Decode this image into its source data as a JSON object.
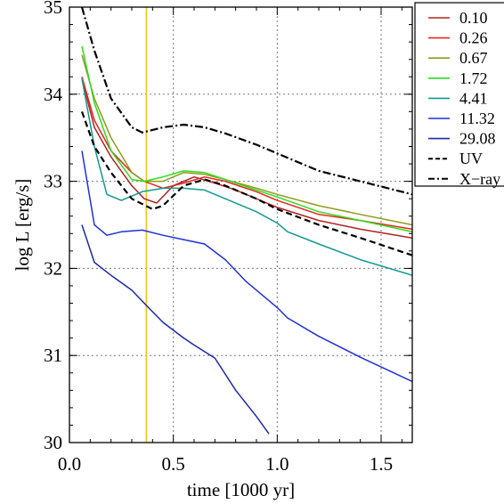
{
  "chart_data": {
    "type": "line",
    "xlabel": "time [1000 yr]",
    "ylabel": "log L [erg/s]",
    "xlim": [
      0.0,
      1.65
    ],
    "ylim": [
      30,
      35
    ],
    "x_ticks": [
      {
        "value": 0.0,
        "label": "0.0"
      },
      {
        "value": 0.5,
        "label": "0.5"
      },
      {
        "value": 1.0,
        "label": "1.0"
      },
      {
        "value": 1.5,
        "label": "1.5"
      }
    ],
    "y_ticks": [
      {
        "value": 30,
        "label": "30"
      },
      {
        "value": 31,
        "label": "31"
      },
      {
        "value": 32,
        "label": "32"
      },
      {
        "value": 33,
        "label": "33"
      },
      {
        "value": 34,
        "label": "34"
      },
      {
        "value": 35,
        "label": "35"
      }
    ],
    "grid": true,
    "legend_position": "top-right outside",
    "vertical_line": {
      "x": 0.37,
      "color": "#f0c419"
    },
    "series": [
      {
        "name": "0.10",
        "color": "#b22222",
        "dash": "solid",
        "x": [
          0.06,
          0.12,
          0.2,
          0.3,
          0.36,
          0.42,
          0.5,
          0.6,
          0.7,
          0.8,
          1.0,
          1.2,
          1.4,
          1.65
        ],
        "y": [
          34.18,
          33.62,
          33.28,
          32.95,
          32.8,
          32.75,
          32.95,
          33.05,
          32.98,
          32.9,
          32.7,
          32.55,
          32.45,
          32.35
        ]
      },
      {
        "name": "0.26",
        "color": "#e8251b",
        "dash": "solid",
        "x": [
          0.06,
          0.12,
          0.2,
          0.3,
          0.36,
          0.45,
          0.55,
          0.65,
          0.75,
          0.9,
          1.0,
          1.2,
          1.4,
          1.65
        ],
        "y": [
          34.2,
          33.7,
          33.35,
          33.1,
          33.0,
          32.92,
          32.98,
          33.05,
          33.0,
          32.88,
          32.78,
          32.62,
          32.55,
          32.45
        ]
      },
      {
        "name": "0.67",
        "color": "#8e9b1a",
        "dash": "solid",
        "x": [
          0.06,
          0.12,
          0.2,
          0.3,
          0.36,
          0.45,
          0.55,
          0.65,
          0.75,
          0.9,
          1.0,
          1.2,
          1.4,
          1.65
        ],
        "y": [
          34.45,
          33.95,
          33.5,
          33.1,
          33.0,
          33.0,
          33.1,
          33.08,
          33.02,
          32.92,
          32.85,
          32.72,
          32.62,
          32.5
        ]
      },
      {
        "name": "1.72",
        "color": "#2ddc1a",
        "dash": "solid",
        "x": [
          0.06,
          0.12,
          0.2,
          0.3,
          0.36,
          0.45,
          0.55,
          0.65,
          0.75,
          0.9,
          1.0,
          1.2,
          1.4,
          1.65
        ],
        "y": [
          34.55,
          33.9,
          33.35,
          33.02,
          33.0,
          33.05,
          33.12,
          33.1,
          33.02,
          32.9,
          32.82,
          32.65,
          32.55,
          32.42
        ]
      },
      {
        "name": "4.41",
        "color": "#109a92",
        "dash": "solid",
        "x": [
          0.06,
          0.12,
          0.18,
          0.25,
          0.35,
          0.45,
          0.55,
          0.65,
          0.75,
          0.9,
          1.0,
          1.05,
          1.2,
          1.4,
          1.65
        ],
        "y": [
          34.18,
          33.4,
          32.85,
          32.78,
          32.88,
          32.92,
          32.92,
          32.9,
          32.8,
          32.65,
          32.52,
          32.42,
          32.28,
          32.1,
          31.92
        ]
      },
      {
        "name": "11.32",
        "color": "#2030d8",
        "dash": "solid",
        "x": [
          0.06,
          0.12,
          0.18,
          0.25,
          0.35,
          0.45,
          0.55,
          0.65,
          0.75,
          0.85,
          1.0,
          1.05,
          1.2,
          1.4,
          1.65
        ],
        "y": [
          33.35,
          32.5,
          32.38,
          32.42,
          32.44,
          32.38,
          32.33,
          32.28,
          32.1,
          31.85,
          31.55,
          31.43,
          31.22,
          30.98,
          30.7
        ]
      },
      {
        "name": "29.08",
        "color": "#1a2aa8",
        "dash": "solid",
        "x": [
          0.06,
          0.12,
          0.2,
          0.3,
          0.38,
          0.45,
          0.55,
          0.6,
          0.7,
          0.8,
          0.9,
          0.96
        ],
        "y": [
          32.5,
          32.07,
          31.92,
          31.75,
          31.55,
          31.38,
          31.2,
          31.12,
          30.97,
          30.6,
          30.3,
          30.1
        ]
      },
      {
        "name": "UV",
        "color": "#000000",
        "dash": "dashed",
        "x": [
          0.06,
          0.12,
          0.2,
          0.3,
          0.4,
          0.45,
          0.55,
          0.65,
          0.75,
          0.9,
          1.0,
          1.2,
          1.4,
          1.65
        ],
        "y": [
          33.8,
          33.4,
          33.1,
          32.8,
          32.68,
          32.72,
          32.95,
          33.02,
          32.95,
          32.8,
          32.68,
          32.5,
          32.35,
          32.15
        ]
      },
      {
        "name": "X−ray",
        "color": "#000000",
        "dash": "dashdot",
        "x": [
          0.06,
          0.12,
          0.2,
          0.3,
          0.35,
          0.45,
          0.55,
          0.65,
          0.75,
          0.9,
          1.0,
          1.2,
          1.4,
          1.65
        ],
        "y": [
          35.0,
          34.5,
          33.95,
          33.62,
          33.56,
          33.62,
          33.65,
          33.62,
          33.55,
          33.42,
          33.32,
          33.12,
          33.0,
          32.85
        ]
      }
    ]
  }
}
